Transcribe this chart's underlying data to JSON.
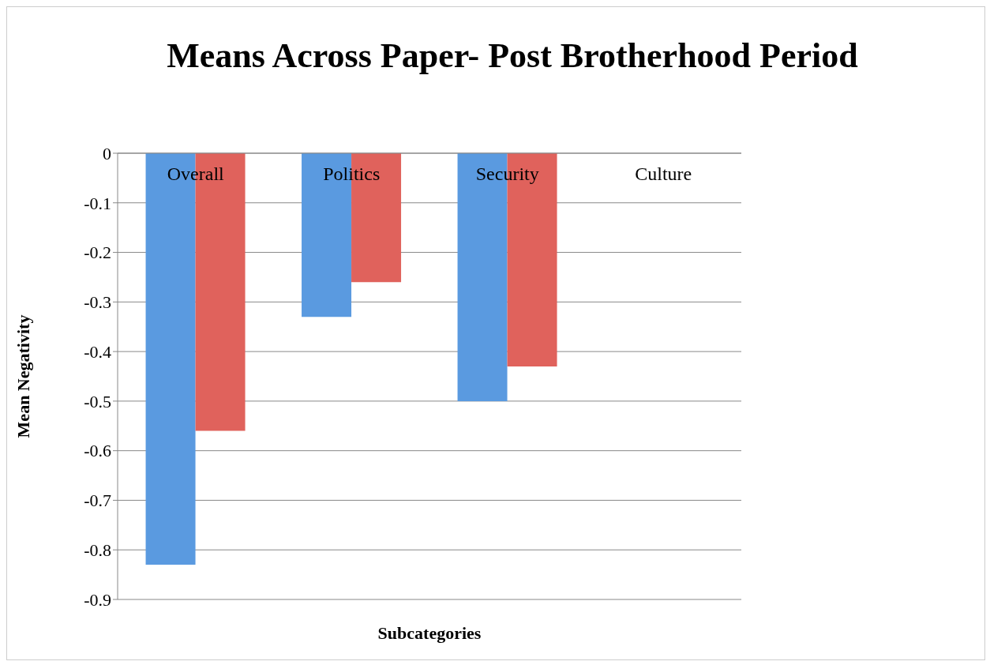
{
  "chart_data": {
    "type": "bar",
    "title": "Means Across Paper- Post Brotherhood Period",
    "xlabel": "Subcategories",
    "ylabel": "Mean Negativity",
    "categories": [
      "Overall",
      "Politics",
      "Security",
      "Culture"
    ],
    "series": [
      {
        "color": "#5a9ae0",
        "values": [
          -0.83,
          -0.33,
          -0.5,
          0
        ]
      },
      {
        "color": "#e0625c",
        "values": [
          -0.56,
          -0.26,
          -0.43,
          0
        ]
      }
    ],
    "ylim": [
      -0.9,
      0
    ],
    "yticks": [
      -0.9,
      -0.8,
      -0.7,
      -0.6,
      -0.5,
      -0.4,
      -0.3,
      -0.2,
      -0.1,
      0
    ],
    "grid": "y"
  }
}
